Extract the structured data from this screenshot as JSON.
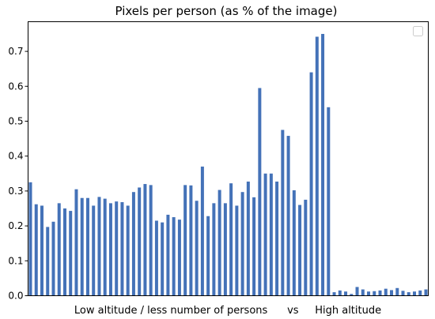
{
  "chart_data": {
    "type": "bar",
    "title": "Pixels per person (as % of the image)",
    "xlabel": "Low altitude / less number of persons      vs     High altitude",
    "ylabel": "",
    "ylim": [
      0,
      0.785
    ],
    "yticks": [
      0.0,
      0.1,
      0.2,
      0.3,
      0.4,
      0.5,
      0.6,
      0.7
    ],
    "bar_color": "#4472b8",
    "grid": false,
    "legend": "top-right (empty)",
    "values": [
      0.325,
      0.262,
      0.258,
      0.197,
      0.212,
      0.265,
      0.25,
      0.243,
      0.305,
      0.28,
      0.28,
      0.258,
      0.283,
      0.278,
      0.265,
      0.27,
      0.268,
      0.258,
      0.297,
      0.31,
      0.32,
      0.317,
      0.215,
      0.21,
      0.232,
      0.225,
      0.218,
      0.317,
      0.316,
      0.272,
      0.37,
      0.228,
      0.265,
      0.303,
      0.265,
      0.322,
      0.258,
      0.297,
      0.327,
      0.282,
      0.595,
      0.35,
      0.35,
      0.327,
      0.475,
      0.458,
      0.302,
      0.26,
      0.275,
      0.64,
      0.742,
      0.75,
      0.54,
      0.01,
      0.015,
      0.012,
      0.005,
      0.025,
      0.018,
      0.012,
      0.013,
      0.015,
      0.02,
      0.016,
      0.022,
      0.014,
      0.01,
      0.012,
      0.015,
      0.018
    ]
  }
}
